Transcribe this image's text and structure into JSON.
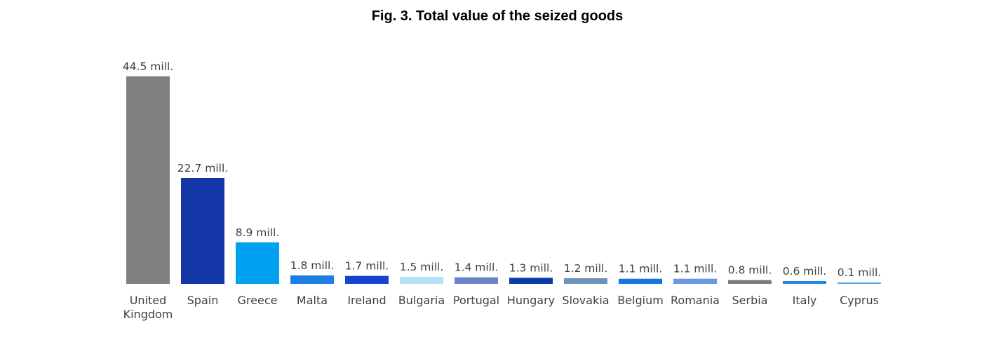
{
  "chart_data": {
    "type": "bar",
    "title": "Fig. 3. Total value of the seized goods",
    "xlabel": "",
    "ylabel": "",
    "unit": "mill.",
    "ylim": [
      0,
      44.5
    ],
    "grid": false,
    "legend": "none",
    "categories": [
      [
        "United",
        "Kingdom"
      ],
      [
        "Spain"
      ],
      [
        "Greece"
      ],
      [
        "Malta"
      ],
      [
        "Ireland"
      ],
      [
        "Bulgaria"
      ],
      [
        "Portugal"
      ],
      [
        "Hungary"
      ],
      [
        "Slovakia"
      ],
      [
        "Belgium"
      ],
      [
        "Romania"
      ],
      [
        "Serbia"
      ],
      [
        "Italy"
      ],
      [
        "Cyprus"
      ]
    ],
    "values": [
      44.5,
      22.7,
      8.9,
      1.8,
      1.7,
      1.5,
      1.4,
      1.3,
      1.2,
      1.1,
      1.1,
      0.8,
      0.6,
      0.1
    ],
    "data_labels": [
      "44.5 mill.",
      "22.7 mill.",
      "8.9 mill.",
      "1.8 mill.",
      "1.7 mill.",
      "1.5 mill.",
      "1.4 mill.",
      "1.3 mill.",
      "1.2 mill.",
      "1.1 mill.",
      "1.1 mill.",
      "0.8 mill.",
      "0.6 mill.",
      "0.1 mill."
    ],
    "colors": [
      "#808080",
      "#1235A8",
      "#00A0F0",
      "#1A7FE0",
      "#1543CC",
      "#B8E0F8",
      "#6B82C8",
      "#0B3BA8",
      "#6E93B8",
      "#1476E0",
      "#6A96E4",
      "#7A7A7A",
      "#1E88E0",
      "#5AA8E8"
    ]
  }
}
